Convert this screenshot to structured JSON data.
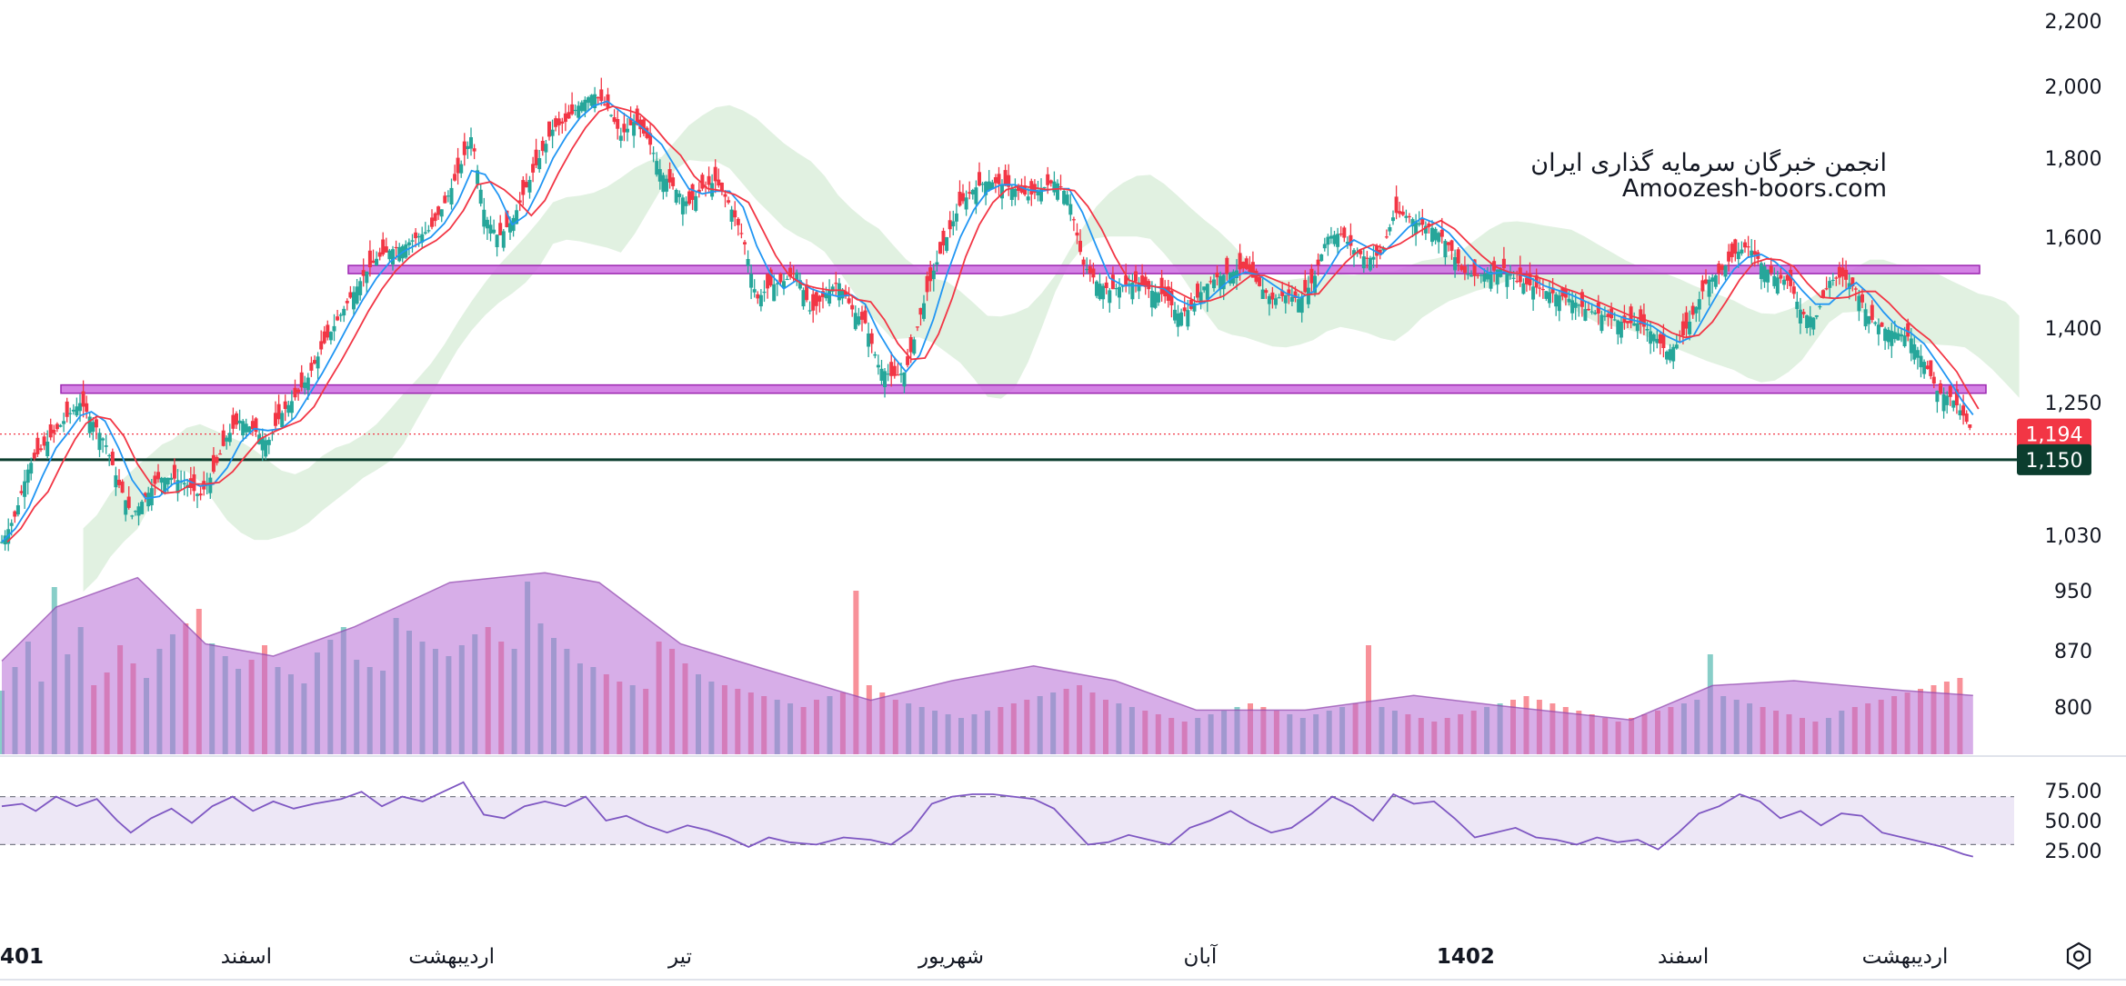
{
  "chart_data": {
    "type": "candlestick",
    "watermark": {
      "line1": "انجمن خبرگان سرمایه گذاری ایران",
      "line2": "Amoozesh-boors.com"
    },
    "price_axis": {
      "ticks": [
        "2,200",
        "2,000",
        "1,800",
        "1,600",
        "1,400",
        "1,250",
        "1,030",
        "950",
        "870",
        "800"
      ],
      "tick_values": [
        2200,
        2000,
        1800,
        1600,
        1400,
        1250,
        1030,
        950,
        870,
        800
      ],
      "scale": "log"
    },
    "price_badges": [
      {
        "label": "1,194",
        "value": 1194,
        "color": "#f23645"
      },
      {
        "label": "1,150",
        "value": 1150,
        "color": "#0b3d2e"
      }
    ],
    "horizontal_levels": [
      {
        "role": "upper-zone",
        "low": 1520,
        "high": 1535,
        "color": "#cc6ce0"
      },
      {
        "role": "lower-zone",
        "low": 1268,
        "high": 1284,
        "color": "#cc6ce0"
      },
      {
        "role": "support-line",
        "value": 1150,
        "color": "#0b3d2e"
      },
      {
        "role": "last-price-line",
        "value": 1194,
        "color": "#f23645"
      }
    ],
    "close_series": [
      [
        0,
        1020
      ],
      [
        10,
        1060
      ],
      [
        20,
        1140
      ],
      [
        30,
        1170
      ],
      [
        40,
        1200
      ],
      [
        50,
        1230
      ],
      [
        58,
        1250
      ],
      [
        66,
        1220
      ],
      [
        76,
        1180
      ],
      [
        86,
        1110
      ],
      [
        96,
        1060
      ],
      [
        106,
        1090
      ],
      [
        116,
        1120
      ],
      [
        126,
        1120
      ],
      [
        136,
        1110
      ],
      [
        146,
        1090
      ],
      [
        156,
        1130
      ],
      [
        166,
        1190
      ],
      [
        176,
        1220
      ],
      [
        186,
        1200
      ],
      [
        196,
        1180
      ],
      [
        206,
        1230
      ],
      [
        216,
        1260
      ],
      [
        226,
        1300
      ],
      [
        236,
        1360
      ],
      [
        246,
        1410
      ],
      [
        256,
        1460
      ],
      [
        266,
        1510
      ],
      [
        276,
        1550
      ],
      [
        286,
        1570
      ],
      [
        296,
        1580
      ],
      [
        306,
        1600
      ],
      [
        316,
        1620
      ],
      [
        326,
        1680
      ],
      [
        336,
        1760
      ],
      [
        346,
        1860
      ],
      [
        356,
        1650
      ],
      [
        366,
        1600
      ],
      [
        376,
        1640
      ],
      [
        386,
        1720
      ],
      [
        396,
        1800
      ],
      [
        406,
        1880
      ],
      [
        416,
        1900
      ],
      [
        426,
        1950
      ],
      [
        436,
        1980
      ],
      [
        446,
        1940
      ],
      [
        456,
        1860
      ],
      [
        466,
        1900
      ],
      [
        476,
        1850
      ],
      [
        486,
        1760
      ],
      [
        496,
        1720
      ],
      [
        506,
        1680
      ],
      [
        516,
        1720
      ],
      [
        526,
        1740
      ],
      [
        536,
        1680
      ],
      [
        546,
        1600
      ],
      [
        556,
        1460
      ],
      [
        566,
        1490
      ],
      [
        576,
        1500
      ],
      [
        586,
        1520
      ],
      [
        596,
        1430
      ],
      [
        606,
        1470
      ],
      [
        616,
        1500
      ],
      [
        626,
        1440
      ],
      [
        636,
        1410
      ],
      [
        646,
        1320
      ],
      [
        656,
        1300
      ],
      [
        666,
        1310
      ],
      [
        676,
        1420
      ],
      [
        686,
        1520
      ],
      [
        696,
        1600
      ],
      [
        706,
        1680
      ],
      [
        716,
        1720
      ],
      [
        726,
        1740
      ],
      [
        736,
        1730
      ],
      [
        746,
        1720
      ],
      [
        756,
        1700
      ],
      [
        766,
        1720
      ],
      [
        776,
        1740
      ],
      [
        786,
        1700
      ],
      [
        796,
        1540
      ],
      [
        806,
        1500
      ],
      [
        816,
        1480
      ],
      [
        826,
        1490
      ],
      [
        836,
        1500
      ],
      [
        846,
        1480
      ],
      [
        856,
        1470
      ],
      [
        866,
        1430
      ],
      [
        876,
        1440
      ],
      [
        886,
        1490
      ],
      [
        896,
        1510
      ],
      [
        906,
        1520
      ],
      [
        916,
        1530
      ],
      [
        926,
        1490
      ],
      [
        936,
        1460
      ],
      [
        946,
        1470
      ],
      [
        956,
        1460
      ],
      [
        966,
        1500
      ],
      [
        976,
        1600
      ],
      [
        986,
        1610
      ],
      [
        996,
        1570
      ],
      [
        1006,
        1550
      ],
      [
        1016,
        1560
      ],
      [
        1026,
        1660
      ],
      [
        1036,
        1650
      ],
      [
        1046,
        1630
      ],
      [
        1056,
        1620
      ],
      [
        1066,
        1580
      ],
      [
        1076,
        1520
      ],
      [
        1086,
        1510
      ],
      [
        1096,
        1520
      ],
      [
        1106,
        1530
      ],
      [
        1116,
        1500
      ],
      [
        1126,
        1490
      ],
      [
        1136,
        1480
      ],
      [
        1146,
        1470
      ],
      [
        1156,
        1460
      ],
      [
        1166,
        1440
      ],
      [
        1176,
        1430
      ],
      [
        1186,
        1420
      ],
      [
        1196,
        1410
      ],
      [
        1206,
        1410
      ],
      [
        1216,
        1390
      ],
      [
        1226,
        1350
      ],
      [
        1236,
        1370
      ],
      [
        1246,
        1430
      ],
      [
        1256,
        1500
      ],
      [
        1266,
        1520
      ],
      [
        1276,
        1560
      ],
      [
        1286,
        1580
      ],
      [
        1296,
        1540
      ],
      [
        1306,
        1510
      ],
      [
        1316,
        1500
      ],
      [
        1326,
        1430
      ],
      [
        1336,
        1420
      ],
      [
        1346,
        1500
      ],
      [
        1356,
        1510
      ],
      [
        1366,
        1480
      ],
      [
        1376,
        1420
      ],
      [
        1386,
        1400
      ],
      [
        1396,
        1390
      ],
      [
        1406,
        1380
      ],
      [
        1416,
        1330
      ],
      [
        1426,
        1270
      ],
      [
        1436,
        1260
      ],
      [
        1444,
        1230
      ],
      [
        1452,
        1194
      ]
    ],
    "volume_bars": [
      35,
      48,
      62,
      40,
      92,
      55,
      70,
      38,
      45,
      60,
      50,
      42,
      58,
      66,
      72,
      80,
      61,
      54,
      47,
      52,
      60,
      48,
      44,
      39,
      56,
      63,
      70,
      52,
      48,
      46,
      75,
      68,
      62,
      58,
      54,
      60,
      66,
      70,
      62,
      58,
      95,
      72,
      64,
      58,
      50,
      48,
      44,
      40,
      38,
      36,
      62,
      58,
      50,
      44,
      40,
      38,
      36,
      34,
      32,
      30,
      28,
      26,
      30,
      32,
      34,
      90,
      38,
      34,
      30,
      28,
      26,
      24,
      22,
      20,
      22,
      24,
      26,
      28,
      30,
      32,
      34,
      36,
      38,
      34,
      30,
      28,
      26,
      24,
      22,
      20,
      18,
      20,
      22,
      24,
      26,
      28,
      26,
      24,
      22,
      20,
      22,
      24,
      26,
      28,
      60,
      26,
      24,
      22,
      20,
      18,
      20,
      22,
      24,
      26,
      28,
      30,
      32,
      30,
      28,
      26,
      24,
      22,
      20,
      18,
      20,
      22,
      24,
      26,
      28,
      30,
      55,
      32,
      30,
      28,
      26,
      24,
      22,
      20,
      18,
      20,
      24,
      26,
      28,
      30,
      32,
      34,
      36,
      38,
      40,
      42
    ],
    "volume_ma": [
      [
        0,
        38
      ],
      [
        40,
        60
      ],
      [
        100,
        72
      ],
      [
        150,
        45
      ],
      [
        200,
        40
      ],
      [
        260,
        52
      ],
      [
        330,
        70
      ],
      [
        400,
        74
      ],
      [
        440,
        70
      ],
      [
        500,
        45
      ],
      [
        560,
        35
      ],
      [
        640,
        22
      ],
      [
        700,
        30
      ],
      [
        760,
        36
      ],
      [
        820,
        30
      ],
      [
        880,
        18
      ],
      [
        960,
        18
      ],
      [
        1040,
        24
      ],
      [
        1100,
        20
      ],
      [
        1200,
        14
      ],
      [
        1260,
        28
      ],
      [
        1320,
        30
      ],
      [
        1400,
        26
      ],
      [
        1452,
        24
      ]
    ],
    "rsi": {
      "ticks": [
        "75.00",
        "50.00",
        "25.00"
      ],
      "tick_values": [
        75,
        50,
        25
      ],
      "upper_band": 70,
      "lower_band": 30,
      "series": [
        [
          0,
          62
        ],
        [
          15,
          64
        ],
        [
          25,
          58
        ],
        [
          40,
          70
        ],
        [
          55,
          62
        ],
        [
          70,
          68
        ],
        [
          85,
          50
        ],
        [
          95,
          40
        ],
        [
          110,
          52
        ],
        [
          125,
          60
        ],
        [
          140,
          48
        ],
        [
          155,
          62
        ],
        [
          170,
          70
        ],
        [
          185,
          58
        ],
        [
          200,
          66
        ],
        [
          215,
          60
        ],
        [
          230,
          64
        ],
        [
          250,
          68
        ],
        [
          265,
          74
        ],
        [
          280,
          62
        ],
        [
          295,
          70
        ],
        [
          310,
          66
        ],
        [
          325,
          74
        ],
        [
          340,
          82
        ],
        [
          355,
          55
        ],
        [
          370,
          52
        ],
        [
          385,
          62
        ],
        [
          400,
          66
        ],
        [
          415,
          62
        ],
        [
          430,
          70
        ],
        [
          445,
          50
        ],
        [
          460,
          54
        ],
        [
          475,
          46
        ],
        [
          490,
          40
        ],
        [
          505,
          46
        ],
        [
          520,
          42
        ],
        [
          535,
          36
        ],
        [
          550,
          28
        ],
        [
          565,
          36
        ],
        [
          580,
          32
        ],
        [
          600,
          30
        ],
        [
          620,
          36
        ],
        [
          640,
          34
        ],
        [
          655,
          30
        ],
        [
          670,
          42
        ],
        [
          685,
          64
        ],
        [
          700,
          70
        ],
        [
          715,
          72
        ],
        [
          730,
          72
        ],
        [
          745,
          70
        ],
        [
          760,
          68
        ],
        [
          775,
          60
        ],
        [
          790,
          42
        ],
        [
          800,
          30
        ],
        [
          815,
          32
        ],
        [
          830,
          38
        ],
        [
          845,
          34
        ],
        [
          860,
          30
        ],
        [
          875,
          44
        ],
        [
          890,
          50
        ],
        [
          905,
          58
        ],
        [
          920,
          48
        ],
        [
          935,
          40
        ],
        [
          950,
          44
        ],
        [
          965,
          56
        ],
        [
          980,
          70
        ],
        [
          995,
          62
        ],
        [
          1010,
          50
        ],
        [
          1025,
          72
        ],
        [
          1040,
          64
        ],
        [
          1055,
          66
        ],
        [
          1070,
          52
        ],
        [
          1085,
          36
        ],
        [
          1100,
          40
        ],
        [
          1115,
          44
        ],
        [
          1130,
          36
        ],
        [
          1145,
          34
        ],
        [
          1160,
          30
        ],
        [
          1175,
          36
        ],
        [
          1190,
          32
        ],
        [
          1205,
          34
        ],
        [
          1220,
          26
        ],
        [
          1235,
          40
        ],
        [
          1250,
          56
        ],
        [
          1265,
          62
        ],
        [
          1280,
          72
        ],
        [
          1295,
          66
        ],
        [
          1310,
          52
        ],
        [
          1325,
          58
        ],
        [
          1340,
          46
        ],
        [
          1355,
          56
        ],
        [
          1370,
          54
        ],
        [
          1385,
          40
        ],
        [
          1400,
          36
        ],
        [
          1415,
          32
        ],
        [
          1430,
          28
        ],
        [
          1445,
          22
        ],
        [
          1452,
          20
        ]
      ]
    },
    "time_axis": [
      {
        "label": "401",
        "x": 0,
        "bold": true
      },
      {
        "label": "اسفند",
        "x": 180,
        "bold": false
      },
      {
        "label": "اردیبهشت",
        "x": 330,
        "bold": false
      },
      {
        "label": "تیر",
        "x": 497,
        "bold": false
      },
      {
        "label": "شهریور",
        "x": 695,
        "bold": false
      },
      {
        "label": "آبان",
        "x": 877,
        "bold": false
      },
      {
        "label": "1402",
        "x": 1071,
        "bold": true
      },
      {
        "label": "اسفند",
        "x": 1230,
        "bold": false
      },
      {
        "label": "اردیبهشت",
        "x": 1392,
        "bold": false
      }
    ],
    "colors": {
      "up": "#26a69a",
      "down": "#f23645",
      "ma_fast": "#2196f3",
      "ma_slow": "#f23645",
      "cloud_bull": "#c8e6c9",
      "cloud_bear": "#ffcdd2",
      "volume_ma_fill": "#b66bd6",
      "rsi_line": "#7e57c2",
      "rsi_band_fill": "#ede7f6"
    }
  },
  "settings_icon": "gear-icon"
}
